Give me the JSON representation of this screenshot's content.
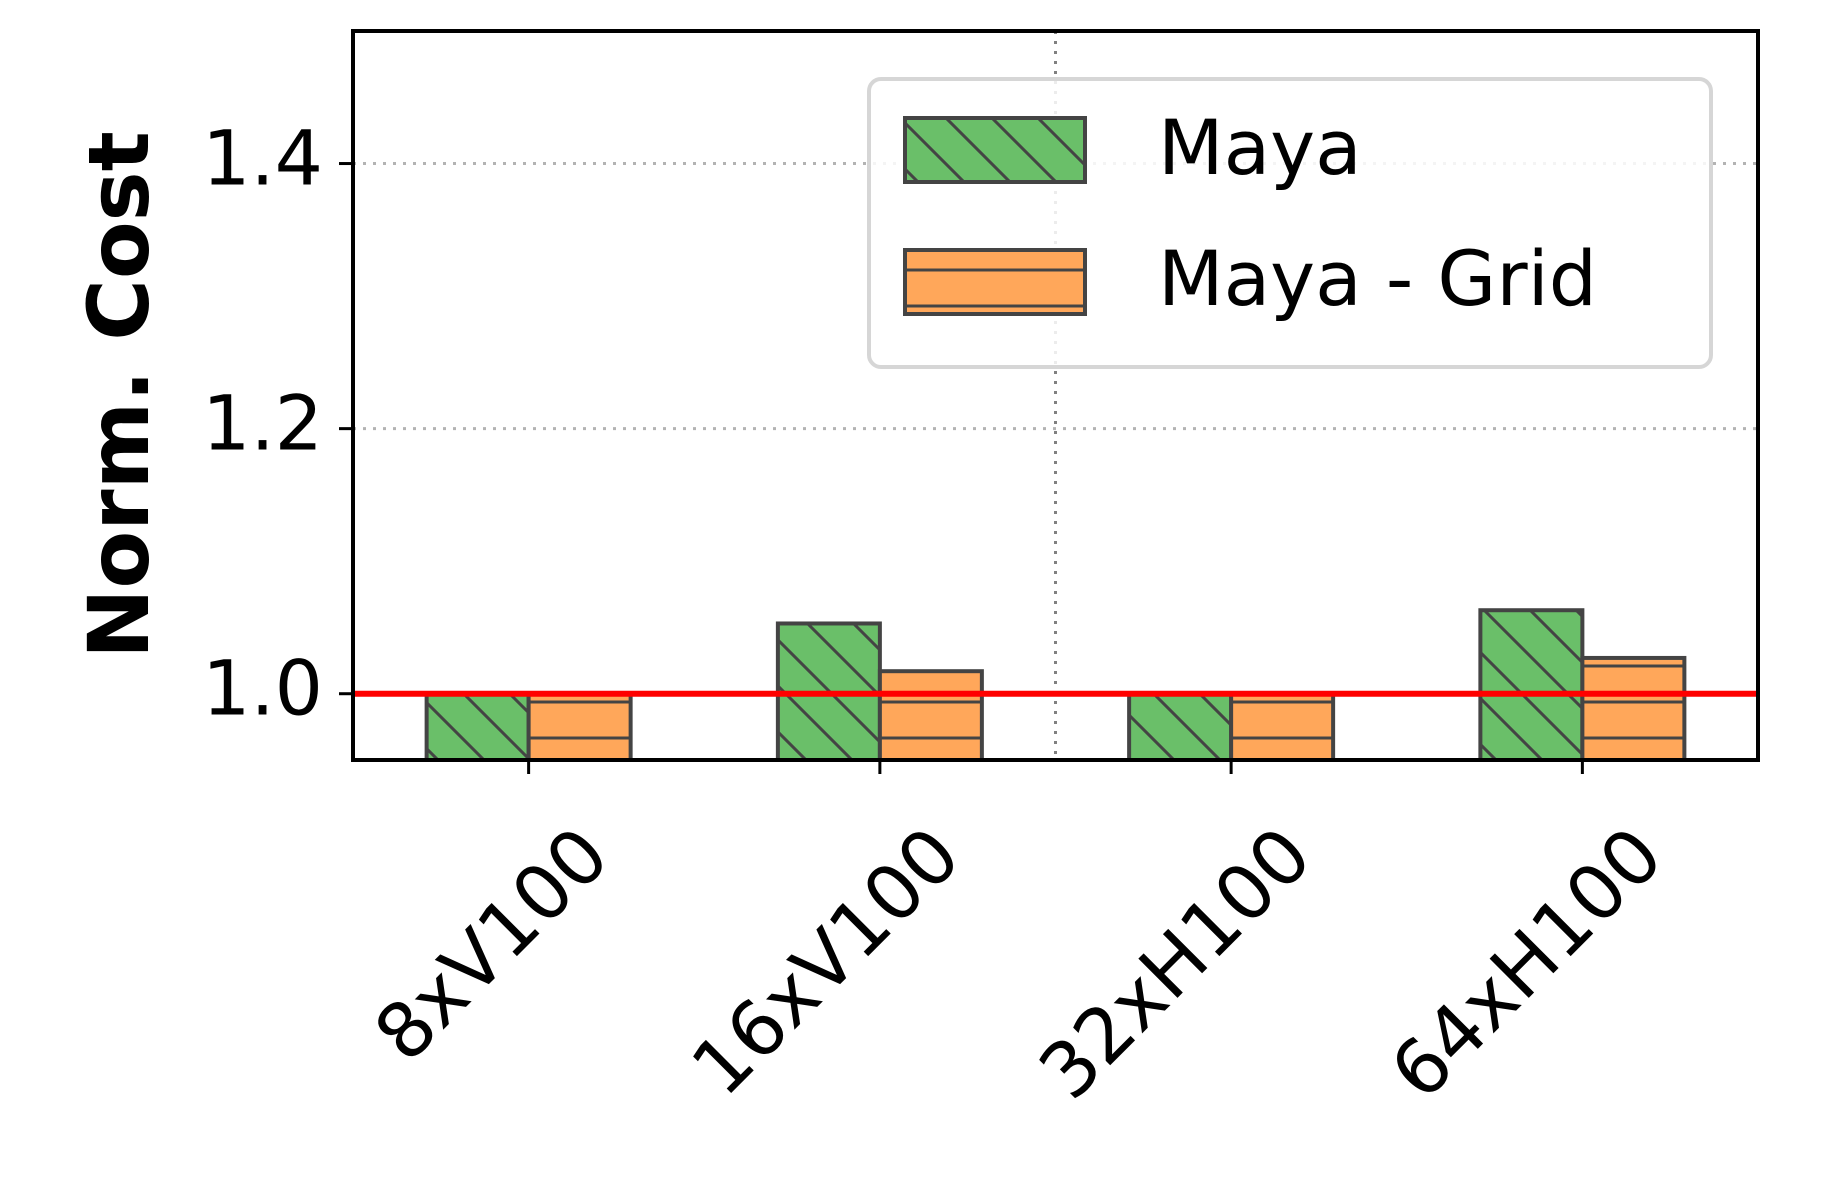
{
  "chart_data": {
    "type": "bar",
    "ylabel": "Norm. Cost",
    "xlabel": "",
    "categories": [
      "8xV100",
      "16xV100",
      "32xH100",
      "64xH100"
    ],
    "series": [
      {
        "name": "Maya",
        "values": [
          1.0,
          1.053,
          1.0,
          1.063
        ],
        "color": "#6abf69",
        "hatch": "diagonal"
      },
      {
        "name": "Maya - Grid",
        "values": [
          1.0,
          1.017,
          1.0,
          1.027
        ],
        "color": "#ffa75a",
        "hatch": "horizontal"
      }
    ],
    "ylim": [
      0.95,
      1.5
    ],
    "yticks": [
      1.0,
      1.2,
      1.4
    ],
    "ytick_labels": [
      "1.0",
      "1.2",
      "1.4"
    ],
    "reference_line": {
      "value": 1.0,
      "color": "#ff0000"
    },
    "grid": "y-dotted",
    "legend_position": "top-right",
    "separator_after_category": 1
  }
}
